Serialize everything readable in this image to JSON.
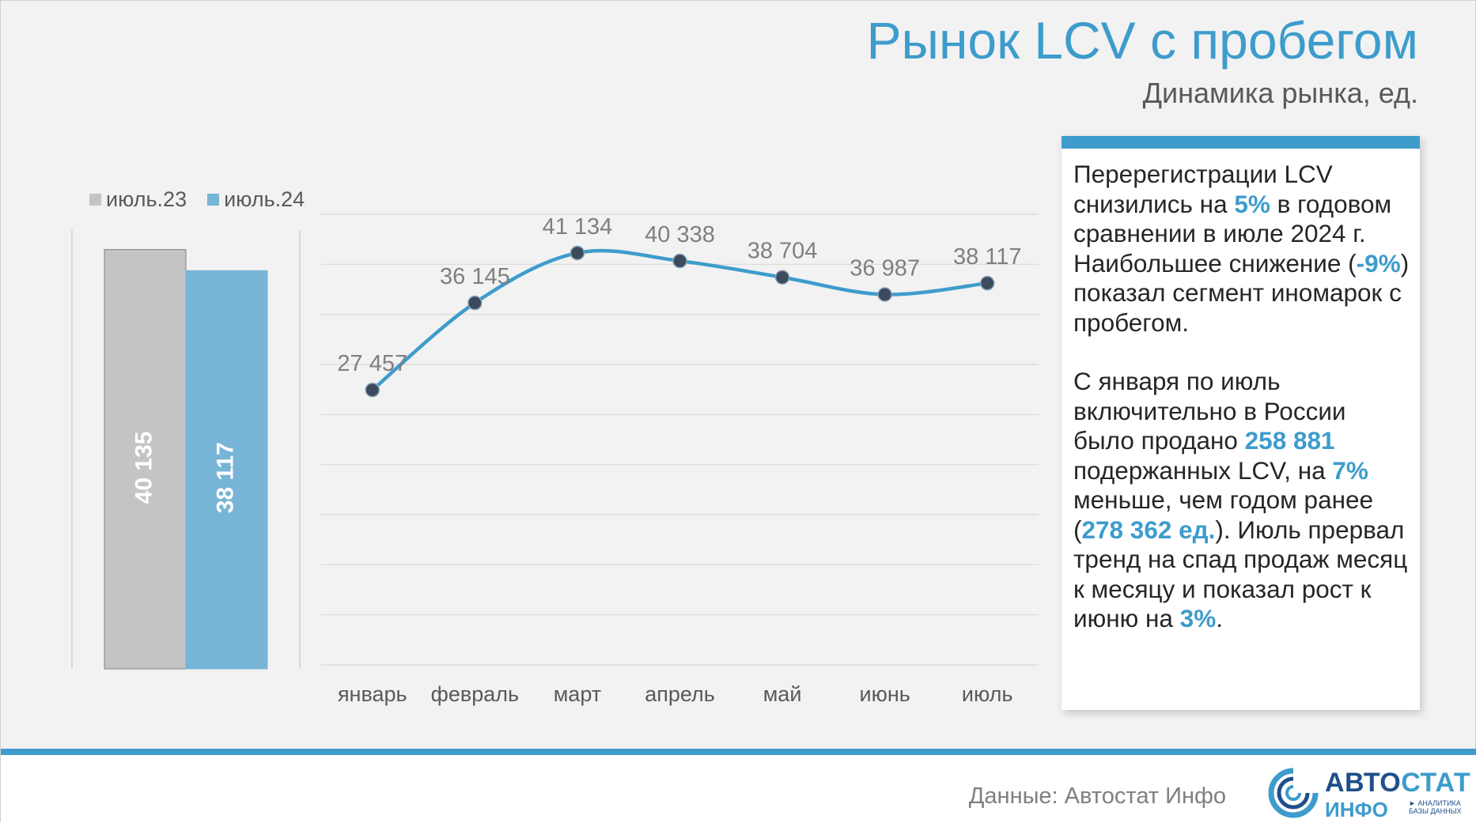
{
  "header": {
    "title": "Рынок LCV с пробегом",
    "subtitle": "Динамика рынка, ед."
  },
  "colors": {
    "accent": "#3d9ccc",
    "bar_2023": "#c4c4c4",
    "bar_2024": "#78b4d6",
    "grid": "#d9d9d9",
    "text_gray": "#595959"
  },
  "chart_data": [
    {
      "type": "bar",
      "legend": [
        "июль.23",
        "июль.24"
      ],
      "categories": [
        "июль.23",
        "июль.24"
      ],
      "values": [
        40135,
        38117
      ],
      "value_labels": [
        "40 135",
        "38 117"
      ],
      "ylim": [
        0,
        42000
      ]
    },
    {
      "type": "line",
      "title": "",
      "categories": [
        "январь",
        "февраль",
        "март",
        "апрель",
        "май",
        "июнь",
        "июль"
      ],
      "values": [
        27457,
        36145,
        41134,
        40338,
        38704,
        36987,
        38117
      ],
      "value_labels": [
        "27 457",
        "36 145",
        "41 134",
        "40 338",
        "38 704",
        "36 987",
        "38 117"
      ],
      "ylim": [
        0,
        45000
      ],
      "grid": true
    }
  ],
  "info_box": {
    "p1_a": "Перерегистрации LCV снизились на ",
    "p1_b": "5%",
    "p1_c": " в годовом сравнении в июле 2024 г. Наибольшее снижение (",
    "p1_d": "-9%",
    "p1_e": ") показал сегмент иномарок с пробегом.",
    "p2_a": "С января по июль включительно в России было продано ",
    "p2_b": "258 881",
    "p2_c": " подержанных LCV, на ",
    "p2_d": "7%",
    "p2_e": " меньше, чем годом ранее (",
    "p2_f": "278 362 ед.",
    "p2_g": "). Июль прервал тренд на спад продаж месяц к месяцу и показал рост к июню на ",
    "p2_h": "3%",
    "p2_i": "."
  },
  "footer": {
    "source": "Данные: Автостат Инфо",
    "logo_main_a": "АВТО",
    "logo_main_b": "СТАТ",
    "logo_sub": "ИНФО",
    "logo_tag": "► АНАЛИТИКА БАЗЫ ДАННЫХ"
  }
}
